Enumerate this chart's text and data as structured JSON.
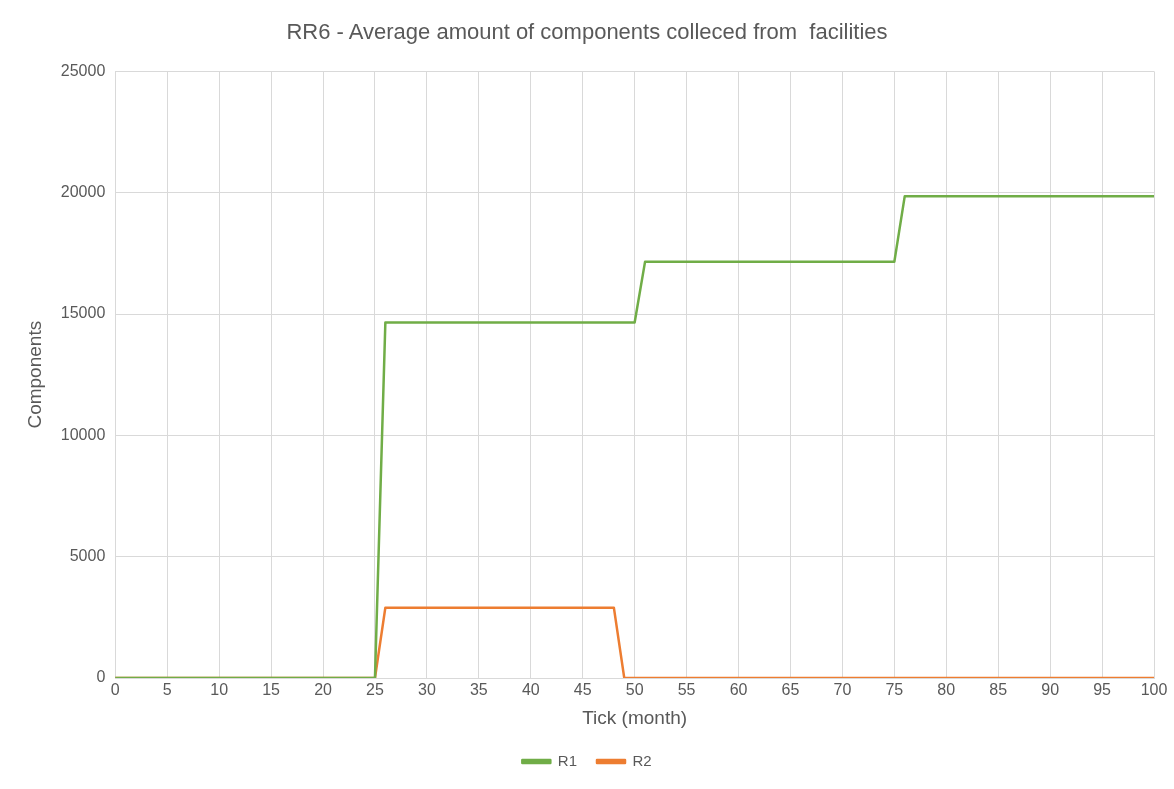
{
  "chart_data": {
    "type": "line",
    "title": "RR6 - Average amount of components colleced from  facilities",
    "xlabel": "Tick (month)",
    "ylabel": "Components",
    "xlim": [
      0,
      100
    ],
    "xticks": [
      0,
      5,
      10,
      15,
      20,
      25,
      30,
      35,
      40,
      45,
      50,
      55,
      60,
      65,
      70,
      75,
      80,
      85,
      90,
      95,
      100
    ],
    "ylim": [
      0,
      25000
    ],
    "yticks": [
      0,
      5000,
      10000,
      15000,
      20000,
      25000
    ],
    "series": [
      {
        "name": "R1",
        "color": "#70ad47",
        "x": [
          0,
          25,
          26,
          50,
          51,
          75,
          76,
          100
        ],
        "values": [
          0,
          0,
          14650,
          14650,
          17150,
          17150,
          19850,
          19850
        ]
      },
      {
        "name": "R2",
        "color": "#ed7d31",
        "x": [
          0,
          25,
          26,
          48,
          49,
          100
        ],
        "values": [
          0,
          0,
          2900,
          2900,
          0,
          0
        ]
      }
    ],
    "grid": true,
    "legend": "bottom",
    "marker": "none",
    "line_style": "solid"
  }
}
